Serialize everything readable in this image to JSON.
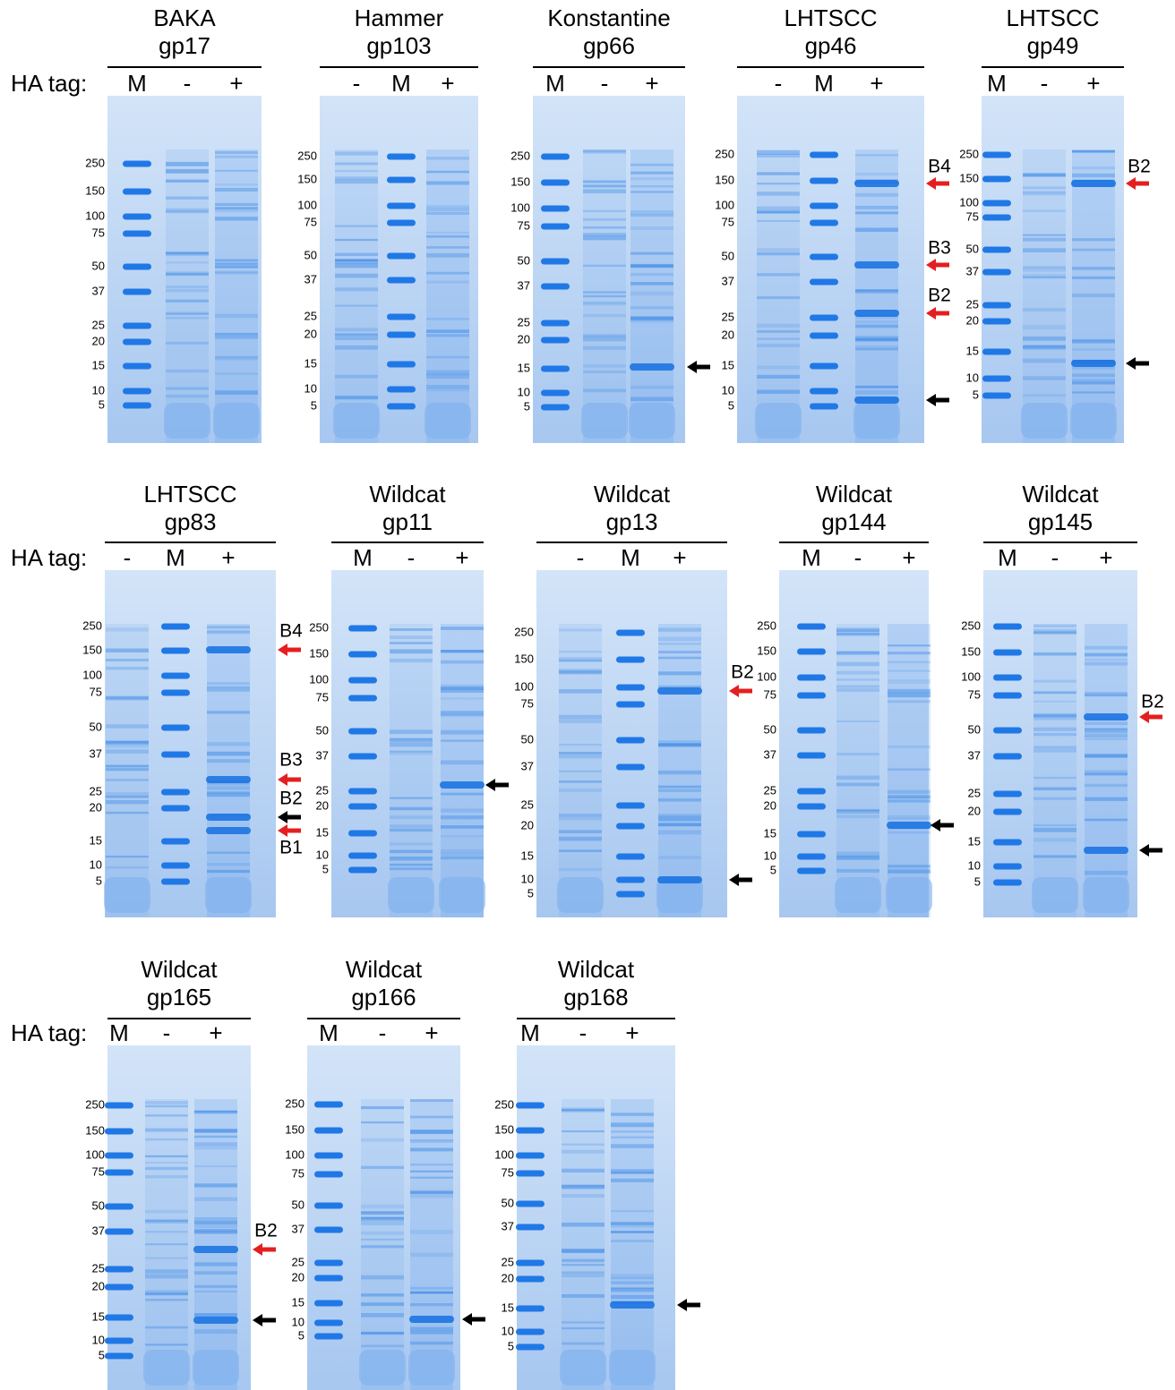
{
  "rows": [
    {
      "label": "HA tag:",
      "panels": [
        {
          "title": [
            "BAKA",
            "gp17"
          ],
          "lanes": [
            "M",
            "-",
            "+"
          ],
          "markers": [
            "250",
            "150",
            "100",
            "75",
            "50",
            "37",
            "25",
            "20",
            "15",
            "10",
            "5"
          ],
          "arrow_labels": []
        },
        {
          "title": [
            "Hammer",
            "gp103"
          ],
          "lanes": [
            "-",
            "M",
            "+"
          ],
          "markers": [
            "250",
            "150",
            "100",
            "75",
            "50",
            "37",
            "25",
            "20",
            "15",
            "10",
            "5"
          ],
          "arrow_labels": []
        },
        {
          "title": [
            "Konstantine",
            "gp66"
          ],
          "lanes": [
            "M",
            "-",
            "+"
          ],
          "markers": [
            "250",
            "150",
            "100",
            "75",
            "50",
            "37",
            "25",
            "20",
            "15",
            "10",
            "5"
          ],
          "arrow_labels": []
        },
        {
          "title": [
            "LHTSCC",
            "gp46"
          ],
          "lanes": [
            "-",
            "M",
            "+"
          ],
          "markers": [
            "250",
            "150",
            "100",
            "75",
            "50",
            "37",
            "25",
            "20",
            "15",
            "10",
            "5"
          ],
          "arrow_labels": [
            "B4",
            "B3",
            "B2"
          ]
        },
        {
          "title": [
            "LHTSCC",
            "gp49"
          ],
          "lanes": [
            "M",
            "-",
            "+"
          ],
          "markers": [
            "250",
            "150",
            "100",
            "75",
            "50",
            "37",
            "25",
            "20",
            "15",
            "10",
            "5"
          ],
          "arrow_labels": [
            "B2"
          ]
        }
      ]
    },
    {
      "label": "HA tag:",
      "panels": [
        {
          "title": [
            "LHTSCC",
            "gp83"
          ],
          "lanes": [
            "-",
            "M",
            "+"
          ],
          "markers": [
            "250",
            "150",
            "100",
            "75",
            "50",
            "37",
            "25",
            "20",
            "15",
            "10",
            "5"
          ],
          "arrow_labels": [
            "B4",
            "B3",
            "B2",
            "B1"
          ]
        },
        {
          "title": [
            "Wildcat",
            "gp11"
          ],
          "lanes": [
            "M",
            "-",
            "+"
          ],
          "markers": [
            "250",
            "150",
            "100",
            "75",
            "50",
            "37",
            "25",
            "20",
            "15",
            "10",
            "5"
          ],
          "arrow_labels": []
        },
        {
          "title": [
            "Wildcat",
            "gp13"
          ],
          "lanes": [
            "-",
            "M",
            "+"
          ],
          "markers": [
            "250",
            "150",
            "100",
            "75",
            "50",
            "37",
            "25",
            "20",
            "15",
            "10",
            "5"
          ],
          "arrow_labels": [
            "B2"
          ]
        },
        {
          "title": [
            "Wildcat",
            "gp144"
          ],
          "lanes": [
            "M",
            "-",
            "+"
          ],
          "markers": [
            "250",
            "150",
            "100",
            "75",
            "50",
            "37",
            "25",
            "20",
            "15",
            "10",
            "5"
          ],
          "arrow_labels": []
        },
        {
          "title": [
            "Wildcat",
            "gp145"
          ],
          "lanes": [
            "M",
            "-",
            "+"
          ],
          "markers": [
            "250",
            "150",
            "100",
            "75",
            "50",
            "37",
            "25",
            "20",
            "15",
            "10",
            "5"
          ],
          "arrow_labels": [
            "B2"
          ]
        }
      ]
    },
    {
      "label": "HA tag:",
      "panels": [
        {
          "title": [
            "Wildcat",
            "gp165"
          ],
          "lanes": [
            "M",
            "-",
            "+"
          ],
          "markers": [
            "250",
            "150",
            "100",
            "75",
            "50",
            "37",
            "25",
            "20",
            "15",
            "10",
            "5"
          ],
          "arrow_labels": [
            "B2"
          ]
        },
        {
          "title": [
            "Wildcat",
            "gp166"
          ],
          "lanes": [
            "M",
            "-",
            "+"
          ],
          "markers": [
            "250",
            "150",
            "100",
            "75",
            "50",
            "37",
            "25",
            "20",
            "15",
            "10",
            "5"
          ],
          "arrow_labels": []
        },
        {
          "title": [
            "Wildcat",
            "gp168"
          ],
          "lanes": [
            "M",
            "-",
            "+"
          ],
          "markers": [
            "250",
            "150",
            "100",
            "75",
            "50",
            "37",
            "25",
            "20",
            "15",
            "10",
            "5"
          ],
          "arrow_labels": []
        }
      ]
    }
  ]
}
